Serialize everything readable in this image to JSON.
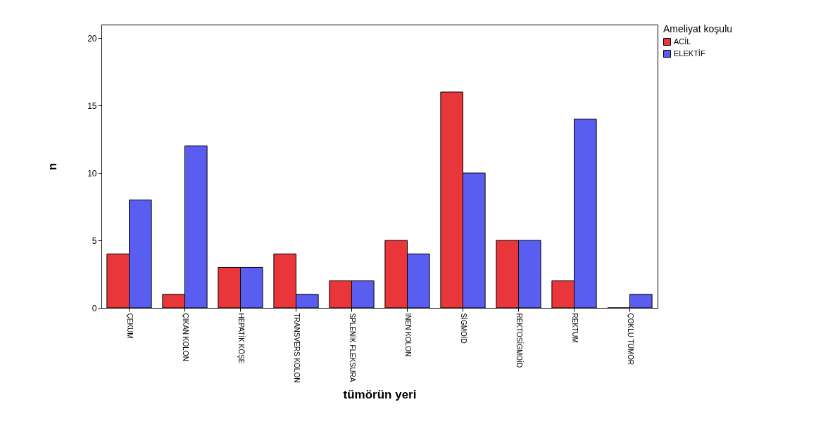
{
  "chart_data": {
    "type": "bar",
    "xlabel": "tümörün yeri",
    "ylabel": "n",
    "legend_title": "Ameliyat koşulu",
    "legend": "right",
    "categories": [
      "ÇEKUM",
      "ÇIKAN KOLON",
      "HEPATİK KÖŞE",
      "TRANSVERS KOLON",
      "SPLENİK FLEKSURA",
      "İNEN KOLON",
      "SİGMOİD",
      "REKTOSİGMOİD",
      "REKTUM",
      "ÇOKLU TÜMÖR"
    ],
    "series": [
      {
        "name": "ACİL",
        "color": "#e8363a",
        "values": [
          4,
          1,
          3,
          4,
          2,
          5,
          16,
          5,
          2,
          0
        ]
      },
      {
        "name": "ELEKTİF",
        "color": "#5a5ef0",
        "values": [
          8,
          12,
          3,
          1,
          2,
          4,
          10,
          5,
          14,
          1
        ]
      }
    ],
    "ylim": [
      0,
      21
    ],
    "yticks": [
      0,
      5,
      10,
      15,
      20
    ],
    "grid": false
  }
}
